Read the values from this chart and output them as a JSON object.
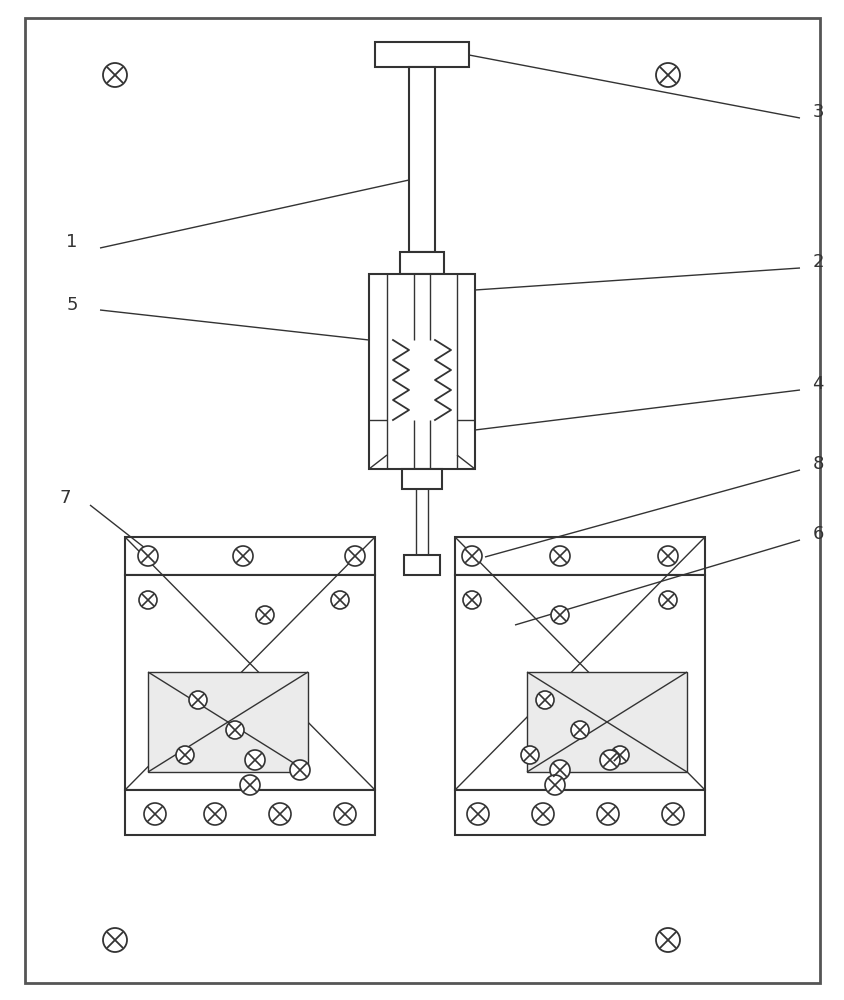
{
  "bg_color": "#ffffff",
  "plate_color": "#f5f5f5",
  "line_color": "#333333",
  "lw_main": 1.5,
  "lw_thin": 1.0,
  "fig_width": 8.45,
  "fig_height": 10.0
}
